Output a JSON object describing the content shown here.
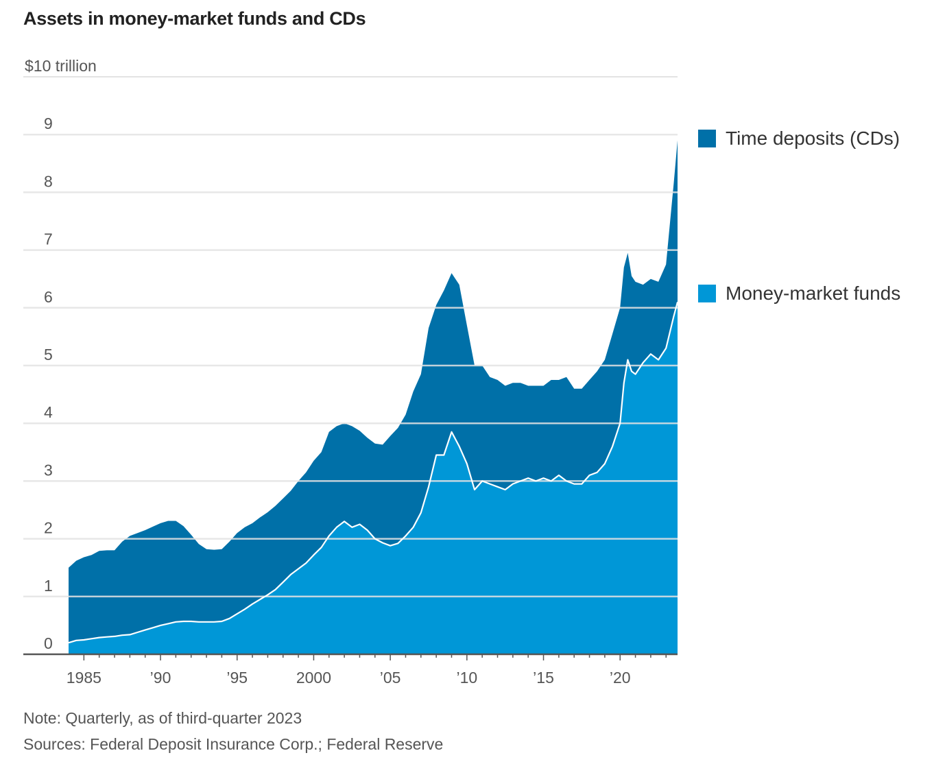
{
  "title": "Assets in money-market funds and CDs",
  "colors": {
    "time_deposits": "#0070a8",
    "money_market": "#0097d7",
    "gridline": "#e3e3e3",
    "axis": "#555555"
  },
  "legend": {
    "time_deposits": "Time deposits (CDs)",
    "money_market": "Money-market funds"
  },
  "footnotes": {
    "note": "Note: Quarterly, as of third-quarter 2023",
    "sources": "Sources: Federal Deposit Insurance Corp.; Federal Reserve"
  },
  "chart_data": {
    "type": "area",
    "stacked": true,
    "title": "Assets in money-market funds and CDs",
    "unit_label": "$10 trillion",
    "ylim": [
      0,
      10
    ],
    "xlim": [
      1984.0,
      2023.75
    ],
    "y_ticks": [
      {
        "value": 0,
        "label": "0"
      },
      {
        "value": 1,
        "label": "1"
      },
      {
        "value": 2,
        "label": "2"
      },
      {
        "value": 3,
        "label": "3"
      },
      {
        "value": 4,
        "label": "4"
      },
      {
        "value": 5,
        "label": "5"
      },
      {
        "value": 6,
        "label": "6"
      },
      {
        "value": 7,
        "label": "7"
      },
      {
        "value": 8,
        "label": "8"
      },
      {
        "value": 9,
        "label": "9"
      }
    ],
    "x_ticks": [
      {
        "value": 1985,
        "label": "1985"
      },
      {
        "value": 1990,
        "label": "’90"
      },
      {
        "value": 1995,
        "label": "’95"
      },
      {
        "value": 2000,
        "label": "2000"
      },
      {
        "value": 2005,
        "label": "’05"
      },
      {
        "value": 2010,
        "label": "’10"
      },
      {
        "value": 2015,
        "label": "’15"
      },
      {
        "value": 2020,
        "label": "’20"
      }
    ],
    "grid": true,
    "legend_position": "right",
    "x": [
      1984.0,
      1984.5,
      1985.0,
      1985.5,
      1986.0,
      1986.5,
      1987.0,
      1987.5,
      1988.0,
      1988.5,
      1989.0,
      1989.5,
      1990.0,
      1990.5,
      1991.0,
      1991.5,
      1992.0,
      1992.5,
      1993.0,
      1993.5,
      1994.0,
      1994.5,
      1995.0,
      1995.5,
      1996.0,
      1996.5,
      1997.0,
      1997.5,
      1998.0,
      1998.5,
      1999.0,
      1999.5,
      2000.0,
      2000.5,
      2001.0,
      2001.5,
      2002.0,
      2002.5,
      2003.0,
      2003.5,
      2004.0,
      2004.5,
      2005.0,
      2005.5,
      2006.0,
      2006.5,
      2007.0,
      2007.5,
      2008.0,
      2008.5,
      2009.0,
      2009.5,
      2010.0,
      2010.5,
      2011.0,
      2011.5,
      2012.0,
      2012.5,
      2013.0,
      2013.5,
      2014.0,
      2014.5,
      2015.0,
      2015.5,
      2016.0,
      2016.5,
      2017.0,
      2017.5,
      2018.0,
      2018.5,
      2019.0,
      2019.5,
      2020.0,
      2020.25,
      2020.5,
      2020.75,
      2021.0,
      2021.5,
      2022.0,
      2022.5,
      2023.0,
      2023.5,
      2023.75
    ],
    "series": [
      {
        "name": "Money-market funds",
        "values": [
          0.2,
          0.24,
          0.25,
          0.27,
          0.29,
          0.3,
          0.31,
          0.33,
          0.34,
          0.38,
          0.42,
          0.46,
          0.5,
          0.53,
          0.56,
          0.57,
          0.57,
          0.56,
          0.56,
          0.56,
          0.57,
          0.62,
          0.7,
          0.78,
          0.87,
          0.95,
          1.03,
          1.12,
          1.25,
          1.38,
          1.48,
          1.58,
          1.72,
          1.85,
          2.05,
          2.2,
          2.3,
          2.2,
          2.25,
          2.15,
          2.0,
          1.93,
          1.88,
          1.92,
          2.05,
          2.2,
          2.45,
          2.9,
          3.45,
          3.45,
          3.85,
          3.6,
          3.3,
          2.85,
          3.0,
          2.95,
          2.9,
          2.85,
          2.95,
          3.0,
          3.05,
          3.0,
          3.05,
          3.0,
          3.1,
          3.0,
          2.95,
          2.95,
          3.1,
          3.15,
          3.3,
          3.6,
          4.0,
          4.7,
          5.1,
          4.9,
          4.85,
          5.05,
          5.2,
          5.1,
          5.3,
          5.85,
          6.1
        ]
      },
      {
        "name": "Time deposits (CDs)",
        "values": [
          1.3,
          1.38,
          1.43,
          1.45,
          1.5,
          1.5,
          1.49,
          1.62,
          1.71,
          1.72,
          1.73,
          1.75,
          1.77,
          1.78,
          1.75,
          1.65,
          1.5,
          1.35,
          1.26,
          1.25,
          1.25,
          1.33,
          1.4,
          1.42,
          1.4,
          1.42,
          1.43,
          1.45,
          1.45,
          1.45,
          1.52,
          1.57,
          1.63,
          1.65,
          1.8,
          1.75,
          1.7,
          1.75,
          1.62,
          1.6,
          1.65,
          1.7,
          1.9,
          2.0,
          2.1,
          2.35,
          2.4,
          2.75,
          2.6,
          2.85,
          2.75,
          2.8,
          2.4,
          2.15,
          2.0,
          1.85,
          1.85,
          1.8,
          1.75,
          1.7,
          1.6,
          1.65,
          1.6,
          1.75,
          1.65,
          1.8,
          1.65,
          1.65,
          1.65,
          1.75,
          1.8,
          1.95,
          2.0,
          2.0,
          1.85,
          1.65,
          1.6,
          1.35,
          1.3,
          1.35,
          1.45,
          2.3,
          2.8
        ]
      }
    ]
  }
}
